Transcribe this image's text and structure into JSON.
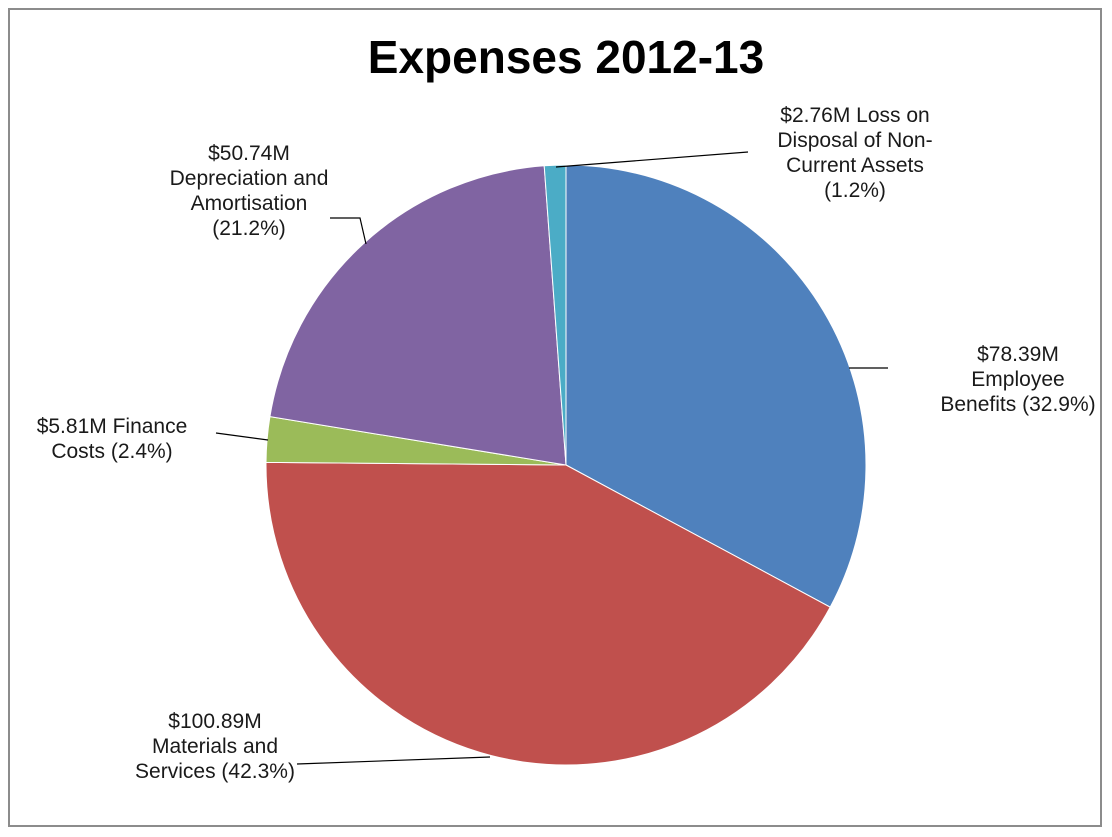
{
  "chart_data": {
    "type": "pie",
    "title": "Expenses 2012-13",
    "slices": [
      {
        "name": "Employee Benefits",
        "value": 78.39,
        "percent": 32.9,
        "color": "#4f81bd",
        "label_lines": [
          "$78.39M",
          "Employee",
          "Benefits (32.9%)"
        ]
      },
      {
        "name": "Materials and Services",
        "value": 100.89,
        "percent": 42.3,
        "color": "#c0504d",
        "label_lines": [
          "$100.89M",
          "Materials and",
          "Services (42.3%)"
        ]
      },
      {
        "name": "Finance Costs",
        "value": 5.81,
        "percent": 2.4,
        "color": "#9bbb59",
        "label_lines": [
          "$5.81M Finance",
          "Costs (2.4%)"
        ]
      },
      {
        "name": "Depreciation and Amortisation",
        "value": 50.74,
        "percent": 21.2,
        "color": "#8064a2",
        "label_lines": [
          "$50.74M",
          "Depreciation and",
          "Amortisation",
          "(21.2%)"
        ]
      },
      {
        "name": "Loss on Disposal of Non-Current Assets",
        "value": 2.76,
        "percent": 1.2,
        "color": "#4bacc6",
        "label_lines": [
          "$2.76M Loss on",
          "Disposal of Non-",
          "Current Assets",
          "(1.2%)"
        ]
      }
    ],
    "legend": "none"
  }
}
